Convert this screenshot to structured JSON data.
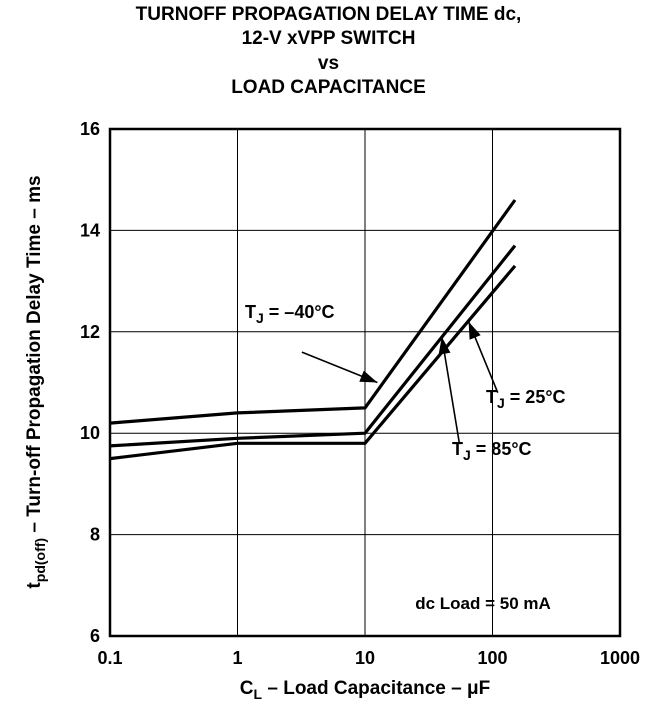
{
  "chart_data": {
    "type": "line",
    "title": [
      "TURNOFF PROPAGATION DELAY TIME dc,",
      "12-V xVPP SWITCH",
      "vs",
      "LOAD CAPACITANCE"
    ],
    "xlabel": {
      "main": "C",
      "sub": "L",
      "rest": " – Load Capacitance – μF"
    },
    "ylabel": {
      "main": "t",
      "sub": "pd(off)",
      "rest": " – Turn-off Propagation Delay Time – ms"
    },
    "x_scale": "log",
    "xlim": [
      0.1,
      1000
    ],
    "ylim": [
      6,
      16
    ],
    "x_ticks": [
      0.1,
      1,
      10,
      100,
      1000
    ],
    "x_tick_labels": [
      "0.1",
      "1",
      "10",
      "100",
      "1000"
    ],
    "y_ticks": [
      6,
      8,
      10,
      12,
      14,
      16
    ],
    "y_tick_labels": [
      "6",
      "8",
      "10",
      "12",
      "14",
      "16"
    ],
    "grid": true,
    "series": [
      {
        "label": {
          "main": "T",
          "sub": "J",
          "rest": " = –40°C"
        },
        "points": [
          [
            0.1,
            10.2
          ],
          [
            1,
            10.4
          ],
          [
            10,
            10.5
          ],
          [
            150,
            14.6
          ]
        ],
        "arrow_from": [
          3.2,
          11.6
        ],
        "arrow_to": [
          12.5,
          11.0
        ]
      },
      {
        "label": {
          "main": "T",
          "sub": "J",
          "rest": " = 25°C"
        },
        "points": [
          [
            0.1,
            9.75
          ],
          [
            1,
            9.9
          ],
          [
            10,
            10.0
          ],
          [
            150,
            13.7
          ]
        ],
        "arrow_from": [
          110,
          10.8
        ],
        "arrow_to": [
          65,
          12.2
        ]
      },
      {
        "label": {
          "main": "T",
          "sub": "J",
          "rest": " = 85°C"
        },
        "points": [
          [
            0.1,
            9.5
          ],
          [
            1,
            9.8
          ],
          [
            10,
            9.8
          ],
          [
            150,
            13.3
          ]
        ],
        "arrow_from": [
          55,
          9.8
        ],
        "arrow_to": [
          40,
          11.9
        ]
      }
    ],
    "annotation": "dc Load = 50 mA"
  }
}
